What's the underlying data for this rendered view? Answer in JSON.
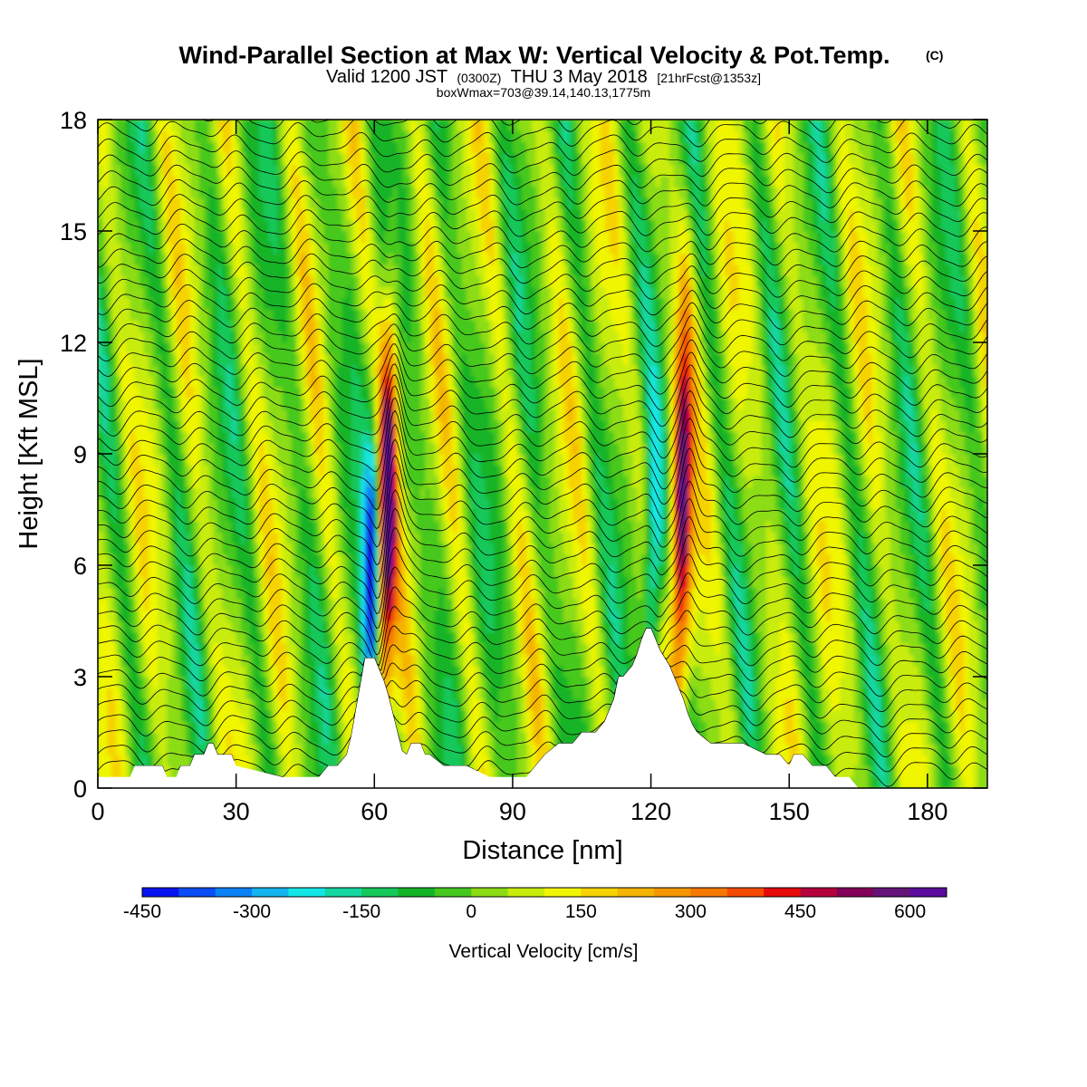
{
  "title": {
    "main": "Wind-Parallel Section at Max W: Vertical Velocity & Pot.Temp.",
    "copyright": "(C)",
    "valid_prefix": "Valid 1200 JST",
    "valid_utc": "(0300Z)",
    "valid_date": "THU 3 May 2018",
    "forecast": "[21hrFcst@1353z]",
    "boxwmax": "boxWmax=703@39.14,140.13,1775m"
  },
  "chart_data": {
    "type": "heatmap",
    "xlabel": "Distance [nm]",
    "ylabel": "Height [Kft MSL]",
    "xlim": [
      0,
      193
    ],
    "ylim": [
      0,
      18
    ],
    "x_ticks": [
      0,
      30,
      60,
      90,
      120,
      150,
      180
    ],
    "y_ticks": [
      0,
      3,
      6,
      9,
      12,
      15,
      18
    ],
    "grid": false,
    "legend": "bottom colorbar",
    "colorbar": {
      "title": "Vertical Velocity [cm/s]",
      "min": -450,
      "max": 650,
      "step": 50,
      "tick_labels": [
        -450,
        -300,
        -150,
        0,
        150,
        300,
        450,
        600
      ],
      "colors": [
        "#0a14f0",
        "#0a4cf5",
        "#0a82f5",
        "#14b4f0",
        "#14e6e6",
        "#14d6a0",
        "#14c85a",
        "#14b428",
        "#46c81e",
        "#8cdc14",
        "#c8ec0a",
        "#f0f500",
        "#f5d200",
        "#f5b400",
        "#f59600",
        "#f57800",
        "#f54b00",
        "#e60a0a",
        "#b4003c",
        "#82005a",
        "#641478",
        "#5a0a9c"
      ]
    },
    "terrain_profile": {
      "x": [
        0,
        7,
        8,
        14,
        15,
        17,
        18,
        20,
        21,
        23,
        24,
        25,
        26,
        27,
        28,
        29,
        30,
        40,
        45,
        48,
        50,
        52,
        54,
        55,
        56,
        57,
        58,
        59,
        60,
        61,
        62,
        63,
        64,
        65,
        66,
        67,
        68,
        69,
        70,
        71,
        72,
        75,
        80,
        85,
        88,
        93,
        95,
        97,
        100,
        103,
        105,
        108,
        110,
        112,
        113,
        114,
        116,
        117,
        118,
        119,
        120,
        121,
        122,
        123,
        124,
        125,
        126,
        127,
        128,
        129,
        130,
        133,
        136,
        140,
        145,
        148,
        150,
        151,
        153,
        155,
        158,
        160,
        163,
        165,
        168,
        175,
        180,
        185,
        190,
        193
      ],
      "h": [
        0.3,
        0.3,
        0.6,
        0.6,
        0.3,
        0.3,
        0.6,
        0.6,
        0.9,
        0.9,
        1.2,
        1.2,
        0.9,
        0.9,
        0.9,
        0.9,
        0.6,
        0.3,
        0.3,
        0.3,
        0.6,
        0.6,
        0.9,
        1.4,
        2.1,
        2.8,
        3.5,
        3.5,
        3.5,
        3.2,
        2.9,
        2.5,
        2.0,
        1.5,
        1.0,
        0.9,
        1.2,
        1.2,
        1.2,
        0.9,
        0.9,
        0.6,
        0.6,
        0.3,
        0.3,
        0.3,
        0.6,
        0.9,
        1.2,
        1.2,
        1.5,
        1.5,
        1.8,
        2.4,
        3.0,
        3.0,
        3.3,
        3.6,
        4.0,
        4.3,
        4.3,
        4.0,
        3.7,
        3.5,
        3.3,
        3.0,
        2.7,
        2.4,
        2.0,
        1.7,
        1.5,
        1.2,
        1.2,
        1.2,
        0.9,
        0.9,
        0.6,
        0.9,
        0.9,
        0.6,
        0.6,
        0.3,
        0.3,
        0.0,
        0.0,
        0.0,
        0.0,
        0.0,
        0.0,
        0.0
      ]
    },
    "updraft_cores": [
      {
        "x": 62.5,
        "peak_w": 600
      },
      {
        "x": 126.5,
        "peak_w": 550
      }
    ],
    "downdraft_cores": [
      {
        "x": 59.5,
        "min_w": -450
      },
      {
        "x": 120.5,
        "min_w": -300
      }
    ]
  }
}
